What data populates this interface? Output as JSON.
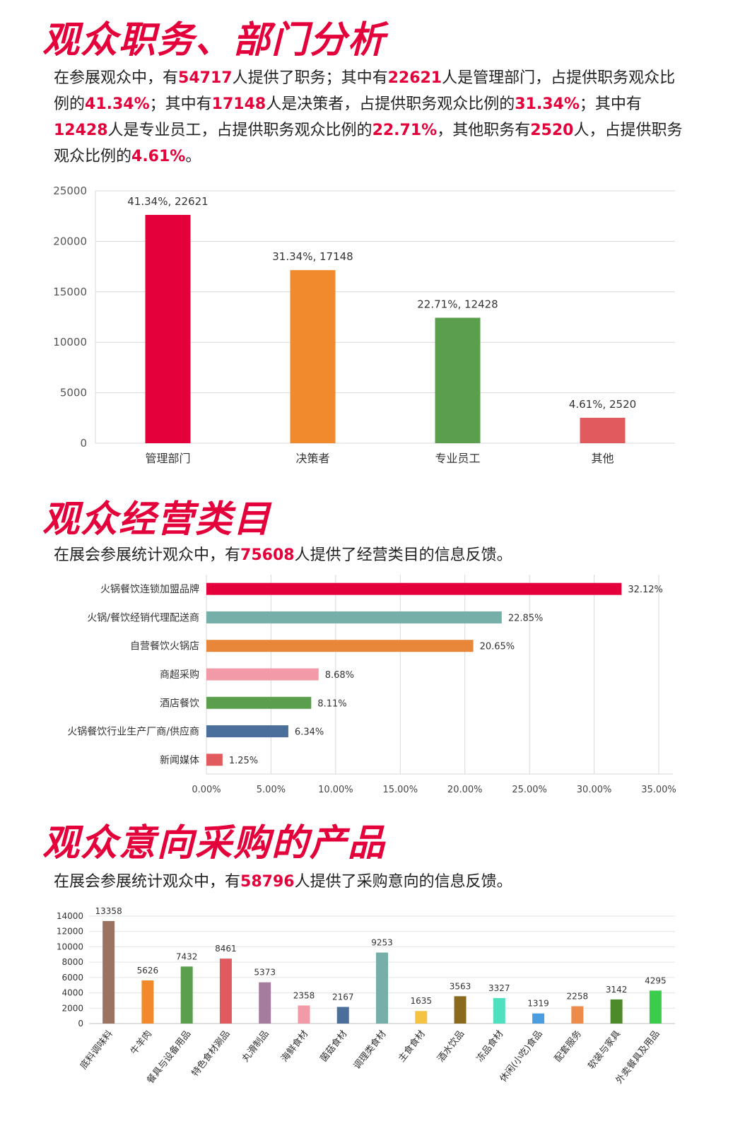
{
  "sections": {
    "s1": {
      "title": "观众职务、部门分析",
      "parts": [
        {
          "t": "在参展观众中，有"
        },
        {
          "t": "54717",
          "hl": true
        },
        {
          "t": "人提供了职务；其中有"
        },
        {
          "t": "22621",
          "hl": true
        },
        {
          "t": "人是管理部门，占提供职务观众比例的"
        },
        {
          "t": "41.34%",
          "hl": true
        },
        {
          "t": "；其中有"
        },
        {
          "t": "17148",
          "hl": true
        },
        {
          "t": "人是决策者，占提供职务观众比例的"
        },
        {
          "t": "31.34%",
          "hl": true
        },
        {
          "t": "；其中有"
        },
        {
          "t": "12428",
          "hl": true
        },
        {
          "t": "人是专业员工，占提供职务观众比例的"
        },
        {
          "t": "22.71%",
          "hl": true
        },
        {
          "t": "，其他职务有"
        },
        {
          "t": "2520",
          "hl": true
        },
        {
          "t": "人，占提供职务观众比例的"
        },
        {
          "t": "4.61%",
          "hl": true
        },
        {
          "t": "。"
        }
      ]
    },
    "s2": {
      "title": "观众经营类目",
      "parts": [
        {
          "t": "在展会参展统计观众中，有"
        },
        {
          "t": "75608",
          "hl": true
        },
        {
          "t": "人提供了经营类目的信息反馈。"
        }
      ]
    },
    "s3": {
      "title": "观众意向采购的产品",
      "parts": [
        {
          "t": "在展会参展统计观众中，有"
        },
        {
          "t": "58796",
          "hl": true
        },
        {
          "t": "人提供了采购意向的信息反馈。"
        }
      ]
    }
  },
  "chart_data": [
    {
      "type": "bar",
      "categories": [
        "管理部门",
        "决策者",
        "专业员工",
        "其他"
      ],
      "values": [
        22621,
        17148,
        12428,
        2520
      ],
      "data_labels": [
        "41.34%, 22621",
        "31.34%, 17148",
        "22.71%, 12428",
        "4.61%, 2520"
      ],
      "colors": [
        "#e4003a",
        "#f08a2c",
        "#5b9e4d",
        "#e05a5e"
      ],
      "ylim": [
        0,
        25000
      ],
      "yticks": [
        "0",
        "5000",
        "10000",
        "15000",
        "20000",
        "25000"
      ],
      "grid": true
    },
    {
      "type": "bar",
      "orientation": "horizontal",
      "categories": [
        "火锅餐饮连锁加盟品牌",
        "火锅/餐饮经销代理配送商",
        "自营餐饮火锅店",
        "商超采购",
        "酒店餐饮",
        "火锅餐饮行业生产厂商/供应商",
        "新闻媒体"
      ],
      "values": [
        32.12,
        22.85,
        20.65,
        8.68,
        8.11,
        6.34,
        1.25
      ],
      "data_labels": [
        "32.12%",
        "22.85%",
        "20.65%",
        "8.68%",
        "8.11%",
        "6.34%",
        "1.25%"
      ],
      "colors": [
        "#e4003a",
        "#76aea8",
        "#e8863a",
        "#f29aa8",
        "#5b9e4d",
        "#4a6f9a",
        "#e05a5e"
      ],
      "xlim": [
        0,
        35
      ],
      "xticks": [
        "0.00%",
        "5.00%",
        "10.00%",
        "15.00%",
        "20.00%",
        "25.00%",
        "30.00%",
        "35.00%"
      ],
      "grid": true
    },
    {
      "type": "bar",
      "categories": [
        "底料调味料",
        "牛羊肉",
        "餐具与设备用品",
        "特色食材涮品",
        "丸滑制品",
        "海鲜食材",
        "菌菇食材",
        "调理类食材",
        "主食食材",
        "酒水饮品",
        "冻品食材",
        "休闲(小吃)食品",
        "配套服务",
        "软装与家具",
        "外卖餐具及用品"
      ],
      "values": [
        13358,
        5626,
        7432,
        8461,
        5373,
        2358,
        2167,
        9253,
        1635,
        3563,
        3327,
        1319,
        2258,
        3142,
        4295
      ],
      "data_labels": [
        "13358",
        "5626",
        "7432",
        "8461",
        "5373",
        "2358",
        "2167",
        "9253",
        "1635",
        "3563",
        "3327",
        "1319",
        "2258",
        "3142",
        "4295"
      ],
      "colors": [
        "#9c7360",
        "#f08a2c",
        "#5b9e4d",
        "#e05a5e",
        "#a67c9e",
        "#f29aa8",
        "#4a6f9a",
        "#76aea8",
        "#f5c242",
        "#8a6a1e",
        "#4fe0c0",
        "#4a9ee0",
        "#ee8a4a",
        "#4d8a2a",
        "#3ccc4c"
      ],
      "ylim": [
        0,
        14000
      ],
      "yticks": [
        "0",
        "2000",
        "4000",
        "6000",
        "8000",
        "10000",
        "12000",
        "14000"
      ],
      "grid": true
    }
  ]
}
